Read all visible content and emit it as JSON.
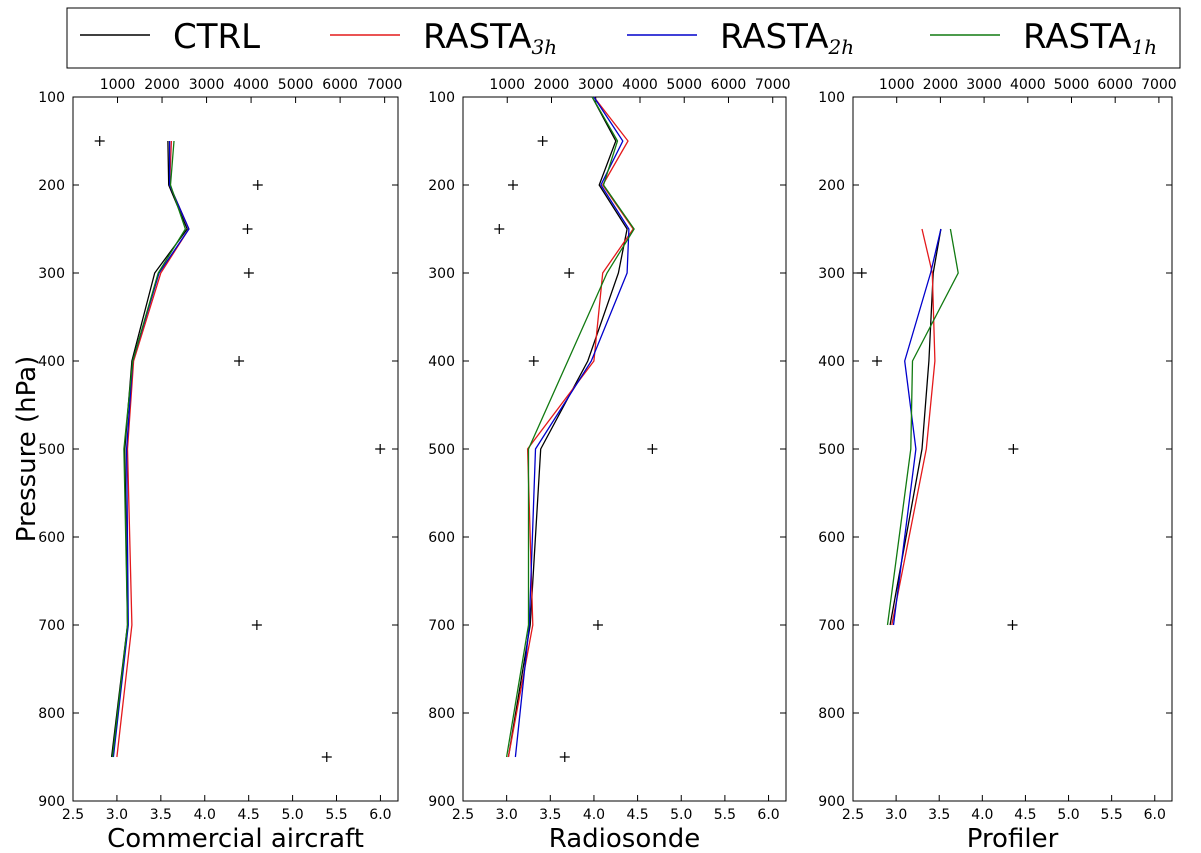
{
  "legend": {
    "entries": [
      {
        "label": "CTRL",
        "sub": "",
        "color": "#000000"
      },
      {
        "label": "RASTA",
        "sub": "3h",
        "color": "#e41a1c"
      },
      {
        "label": "RASTA",
        "sub": "2h",
        "color": "#0000cc"
      },
      {
        "label": "RASTA",
        "sub": "1h",
        "color": "#117a11"
      }
    ]
  },
  "ylabel": "Pressure (hPa)",
  "chart_data": [
    {
      "type": "line",
      "title": "Commercial aircraft",
      "xlim": [
        2.5,
        6.2
      ],
      "x_ticks": [
        "2.5",
        "3.0",
        "3.5",
        "4.0",
        "4.5",
        "5.0",
        "5.5",
        "6.0"
      ],
      "x2lim": [
        0,
        7300
      ],
      "x2_ticks": [
        "1000",
        "2000",
        "3000",
        "4000",
        "5000",
        "6000",
        "7000"
      ],
      "ylim": [
        900,
        100
      ],
      "y_ticks": [
        "100",
        "200",
        "300",
        "400",
        "500",
        "600",
        "700",
        "800",
        "900"
      ],
      "pressure_levels": [
        150,
        200,
        250,
        300,
        400,
        500,
        700,
        850
      ],
      "series": [
        {
          "name": "CTRL",
          "color": "#000000",
          "x": [
            3.58,
            3.59,
            3.8,
            3.43,
            3.17,
            3.09,
            3.12,
            2.94
          ]
        },
        {
          "name": "RASTA3h",
          "color": "#e41a1c",
          "x": [
            3.62,
            3.6,
            3.82,
            3.5,
            3.19,
            3.12,
            3.17,
            3.0
          ]
        },
        {
          "name": "RASTA2h",
          "color": "#0000cc",
          "x": [
            3.6,
            3.6,
            3.82,
            3.48,
            3.18,
            3.11,
            3.13,
            2.96
          ]
        },
        {
          "name": "RASTA1h",
          "color": "#117a11",
          "x": [
            3.65,
            3.61,
            3.78,
            3.47,
            3.18,
            3.08,
            3.12,
            2.95
          ]
        }
      ],
      "counts": {
        "values": [
          600,
          4150,
          3920,
          3950,
          3730,
          6900,
          4130,
          5700
        ],
        "pressure": [
          150,
          200,
          250,
          300,
          400,
          500,
          700,
          850
        ]
      }
    },
    {
      "type": "line",
      "title": "Radiosonde",
      "xlim": [
        2.5,
        6.2
      ],
      "x_ticks": [
        "2.5",
        "3.0",
        "3.5",
        "4.0",
        "4.5",
        "5.0",
        "5.5",
        "6.0"
      ],
      "x2lim": [
        0,
        7300
      ],
      "x2_ticks": [
        "1000",
        "2000",
        "3000",
        "4000",
        "5000",
        "6000",
        "7000"
      ],
      "ylim": [
        900,
        100
      ],
      "y_ticks": [
        "100",
        "200",
        "300",
        "400",
        "500",
        "600",
        "700",
        "800",
        "900"
      ],
      "pressure_levels": [
        100,
        150,
        200,
        250,
        300,
        400,
        500,
        700,
        850
      ],
      "series": [
        {
          "name": "CTRL",
          "color": "#000000",
          "x": [
            3.98,
            4.25,
            4.06,
            4.38,
            4.28,
            3.93,
            3.39,
            3.27,
            3.02
          ]
        },
        {
          "name": "RASTA3h",
          "color": "#e41a1c",
          "x": [
            4.0,
            4.39,
            4.1,
            4.45,
            4.1,
            4.0,
            3.24,
            3.3,
            3.02
          ]
        },
        {
          "name": "RASTA2h",
          "color": "#0000cc",
          "x": [
            4.0,
            4.33,
            4.08,
            4.4,
            4.38,
            3.97,
            3.33,
            3.26,
            3.1
          ]
        },
        {
          "name": "RASTA1h",
          "color": "#117a11",
          "x": [
            3.98,
            4.27,
            4.11,
            4.46,
            4.15,
            3.7,
            3.25,
            3.25,
            3.0
          ]
        }
      ],
      "counts": {
        "values": [
          1800,
          1130,
          820,
          2400,
          1600,
          4280,
          3050,
          2300
        ],
        "pressure": [
          150,
          200,
          250,
          300,
          400,
          500,
          700,
          850
        ]
      }
    },
    {
      "type": "line",
      "title": "Profiler",
      "xlim": [
        2.5,
        6.2
      ],
      "x_ticks": [
        "2.5",
        "3.0",
        "3.5",
        "4.0",
        "4.5",
        "5.0",
        "5.5",
        "6.0"
      ],
      "x2lim": [
        0,
        7300
      ],
      "x2_ticks": [
        "1000",
        "2000",
        "3000",
        "4000",
        "5000",
        "6000",
        "7000"
      ],
      "ylim": [
        900,
        100
      ],
      "y_ticks": [
        "100",
        "200",
        "300",
        "400",
        "500",
        "600",
        "700",
        "800",
        "900"
      ],
      "pressure_levels": [
        250,
        300,
        400,
        500,
        700
      ],
      "series": [
        {
          "name": "CTRL",
          "color": "#000000",
          "x": [
            3.52,
            3.43,
            3.38,
            3.3,
            2.93
          ]
        },
        {
          "name": "RASTA3h",
          "color": "#e41a1c",
          "x": [
            3.3,
            3.42,
            3.45,
            3.35,
            2.95
          ]
        },
        {
          "name": "RASTA2h",
          "color": "#0000cc",
          "x": [
            3.52,
            3.4,
            3.1,
            3.23,
            2.97
          ]
        },
        {
          "name": "RASTA1h",
          "color": "#117a11",
          "x": [
            3.63,
            3.72,
            3.19,
            3.17,
            2.9
          ]
        }
      ],
      "counts": {
        "values": [
          200,
          550,
          3670,
          3650
        ],
        "pressure": [
          300,
          400,
          500,
          700
        ]
      }
    }
  ]
}
